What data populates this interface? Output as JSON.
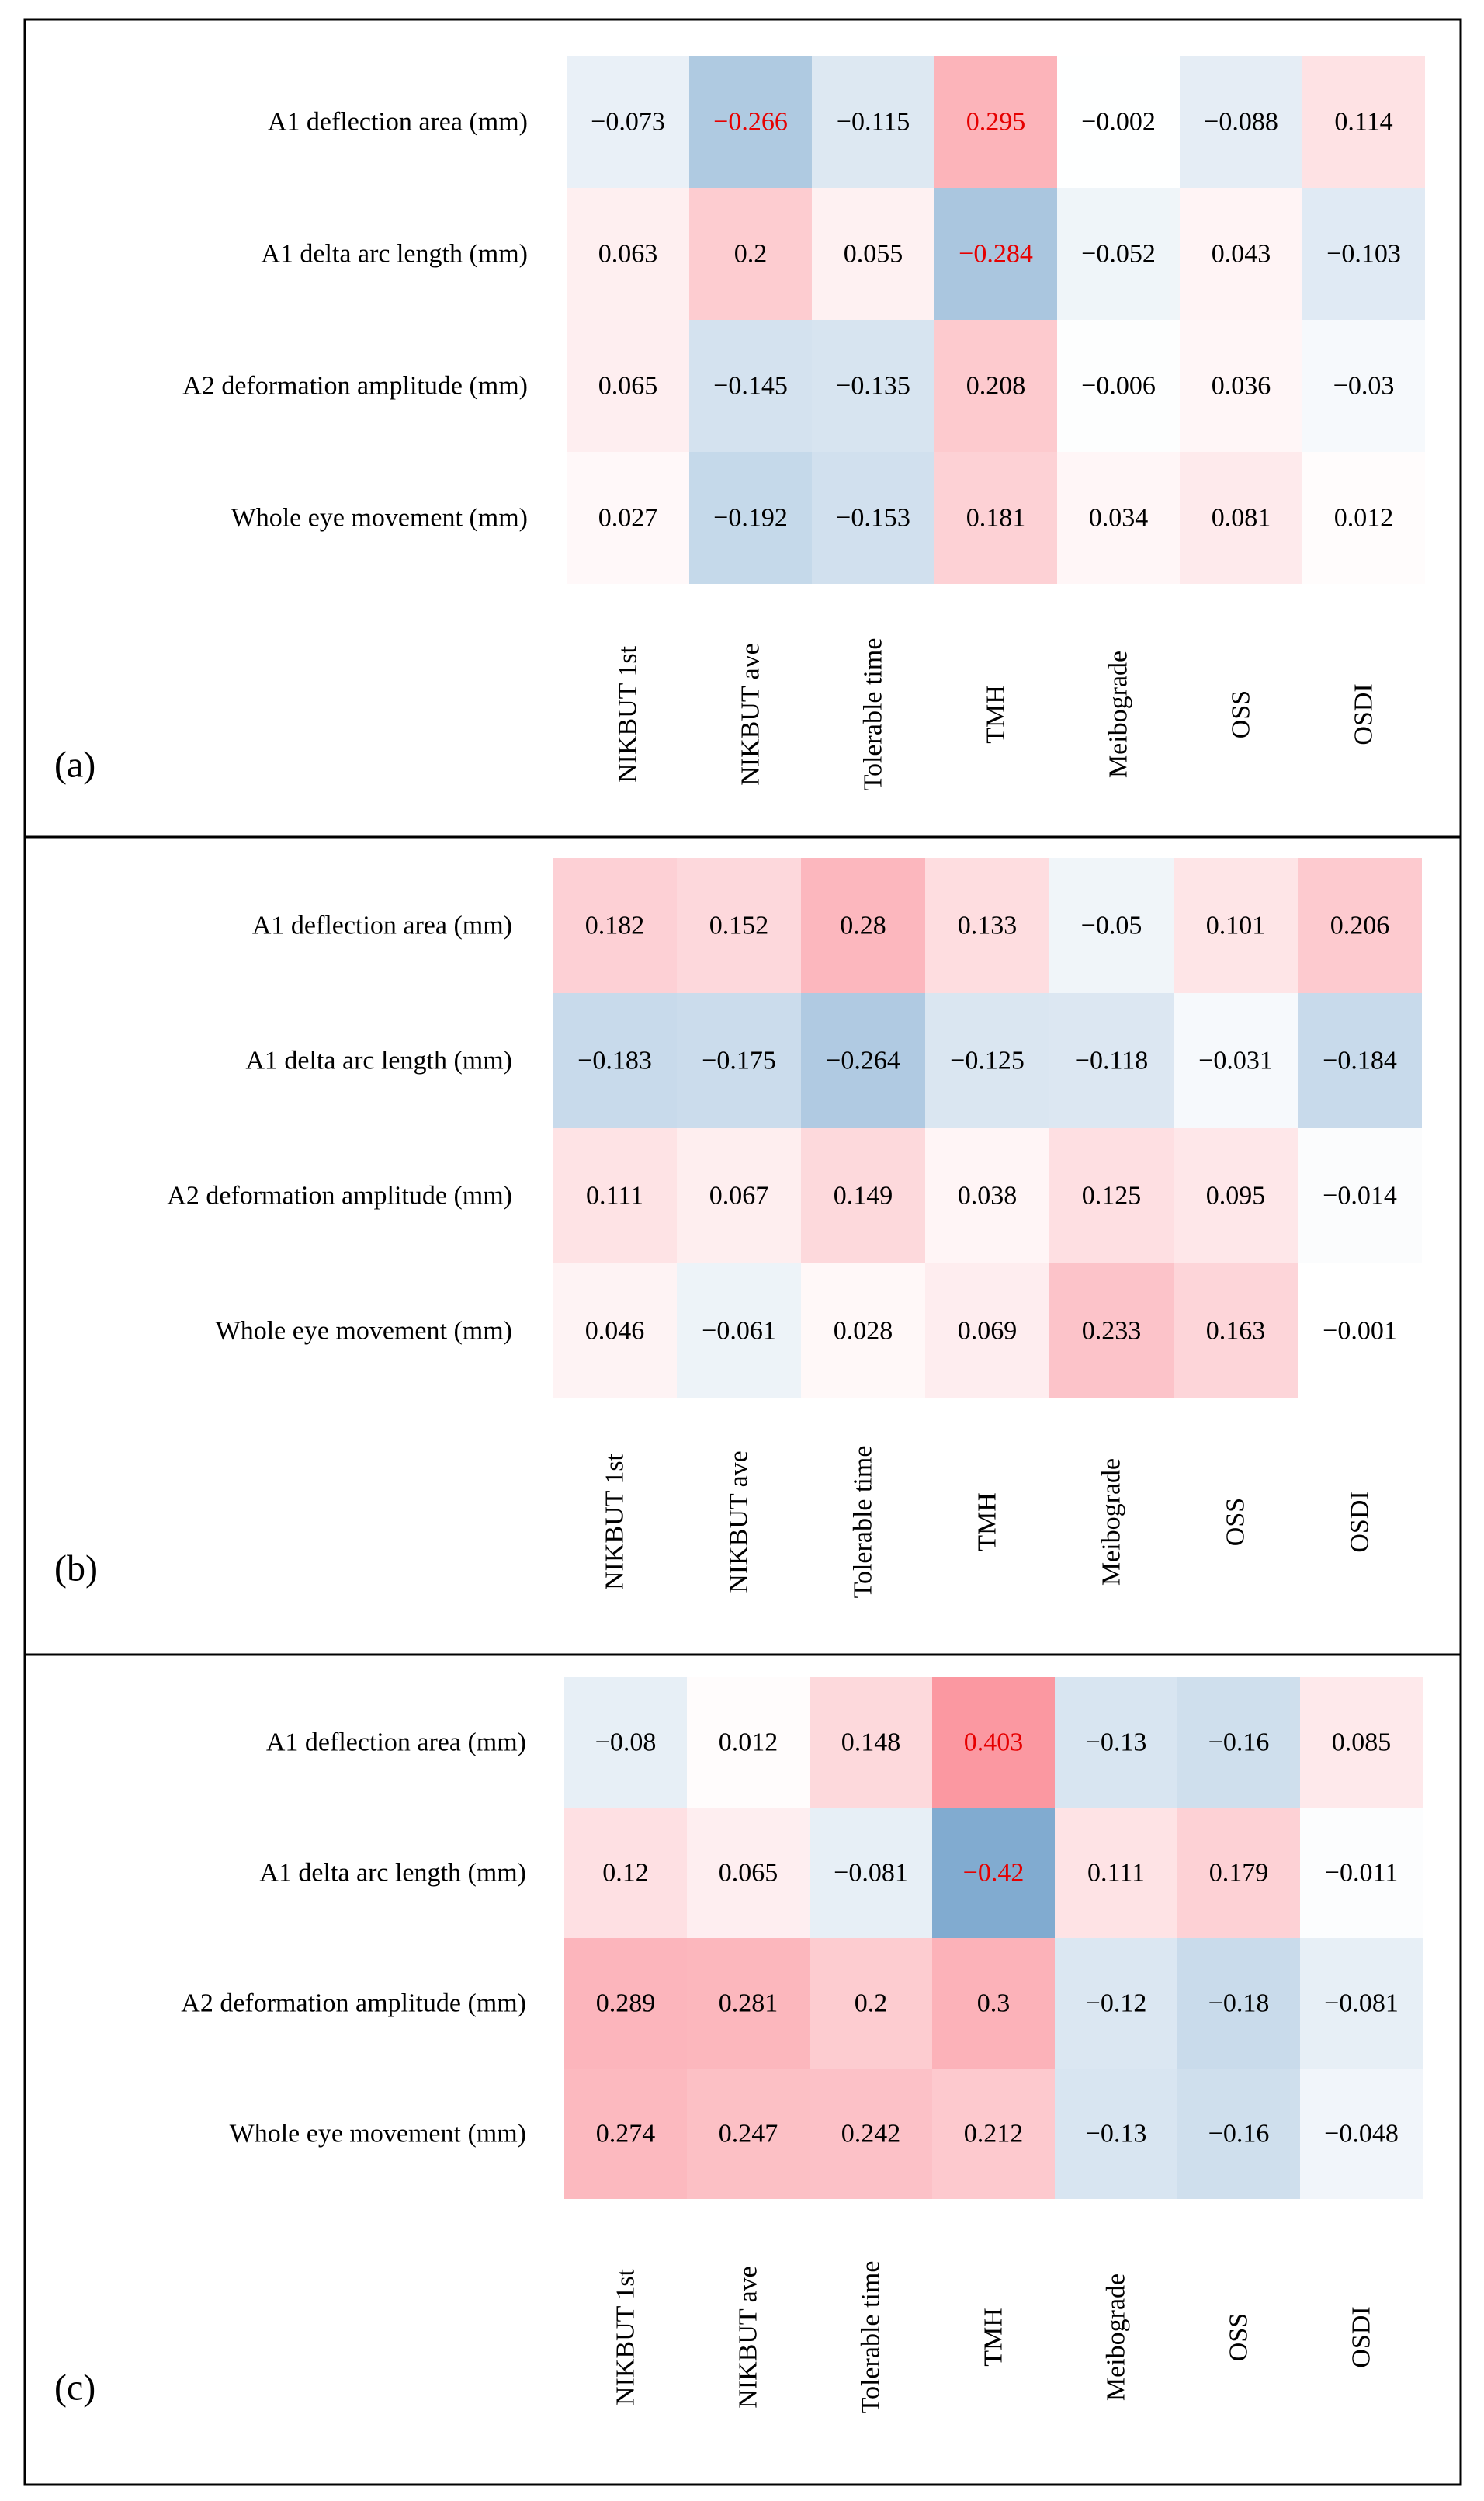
{
  "figure_title": "",
  "colors": {
    "positive": "#fa8c96",
    "negative": "#78a5cd",
    "highlight_text": "#e60000",
    "text": "#000000"
  },
  "chart_data": [
    {
      "type": "heatmap",
      "panel_label": "(a)",
      "rows": [
        "A1 deflection area (mm)",
        "A1 delta arc length (mm)",
        "A2 deformation amplitude (mm)",
        "Whole eye movement (mm)"
      ],
      "columns": [
        "NIKBUT 1st",
        "NIKBUT ave",
        "Tolerable time",
        "TMH",
        "Meibograde",
        "OSS",
        "OSDI"
      ],
      "values": [
        [
          "−0.073",
          "−0.266",
          "−0.115",
          "0.295",
          "−0.002",
          "−0.088",
          "0.114"
        ],
        [
          "0.063",
          "0.2",
          "0.055",
          "−0.284",
          "−0.052",
          "0.043",
          "−0.103"
        ],
        [
          "0.065",
          "−0.145",
          "−0.135",
          "0.208",
          "−0.006",
          "0.036",
          "−0.03"
        ],
        [
          "0.027",
          "−0.192",
          "−0.153",
          "0.181",
          "0.034",
          "0.081",
          "0.012"
        ]
      ],
      "highlighted_cells": [
        [
          0,
          1
        ],
        [
          0,
          3
        ],
        [
          1,
          3
        ]
      ],
      "color_scale_max_abs": 0.45
    },
    {
      "type": "heatmap",
      "panel_label": "(b)",
      "rows": [
        "A1 deflection area (mm)",
        "A1 delta arc length (mm)",
        "A2 deformation amplitude (mm)",
        "Whole eye movement (mm)"
      ],
      "columns": [
        "NIKBUT 1st",
        "NIKBUT ave",
        "Tolerable time",
        "TMH",
        "Meibograde",
        "OSS",
        "OSDI"
      ],
      "values": [
        [
          "0.182",
          "0.152",
          "0.28",
          "0.133",
          "−0.05",
          "0.101",
          "0.206"
        ],
        [
          "−0.183",
          "−0.175",
          "−0.264",
          "−0.125",
          "−0.118",
          "−0.031",
          "−0.184"
        ],
        [
          "0.111",
          "0.067",
          "0.149",
          "0.038",
          "0.125",
          "0.095",
          "−0.014"
        ],
        [
          "0.046",
          "−0.061",
          "0.028",
          "0.069",
          "0.233",
          "0.163",
          "−0.001"
        ]
      ],
      "highlighted_cells": [],
      "color_scale_max_abs": 0.45
    },
    {
      "type": "heatmap",
      "panel_label": "(c)",
      "rows": [
        "A1 deflection area (mm)",
        "A1 delta arc length (mm)",
        "A2 deformation amplitude (mm)",
        "Whole eye movement (mm)"
      ],
      "columns": [
        "NIKBUT 1st",
        "NIKBUT ave",
        "Tolerable time",
        "TMH",
        "Meibograde",
        "OSS",
        "OSDI"
      ],
      "values": [
        [
          "−0.08",
          "0.012",
          "0.148",
          "0.403",
          "−0.13",
          "−0.16",
          "0.085"
        ],
        [
          "0.12",
          "0.065",
          "−0.081",
          "−0.42",
          "0.111",
          "0.179",
          "−0.011"
        ],
        [
          "0.289",
          "0.281",
          "0.2",
          "0.3",
          "−0.12",
          "−0.18",
          "−0.081"
        ],
        [
          "0.274",
          "0.247",
          "0.242",
          "0.212",
          "−0.13",
          "−0.16",
          "−0.048"
        ]
      ],
      "highlighted_cells": [
        [
          0,
          3
        ],
        [
          1,
          3
        ]
      ],
      "color_scale_max_abs": 0.45
    }
  ]
}
